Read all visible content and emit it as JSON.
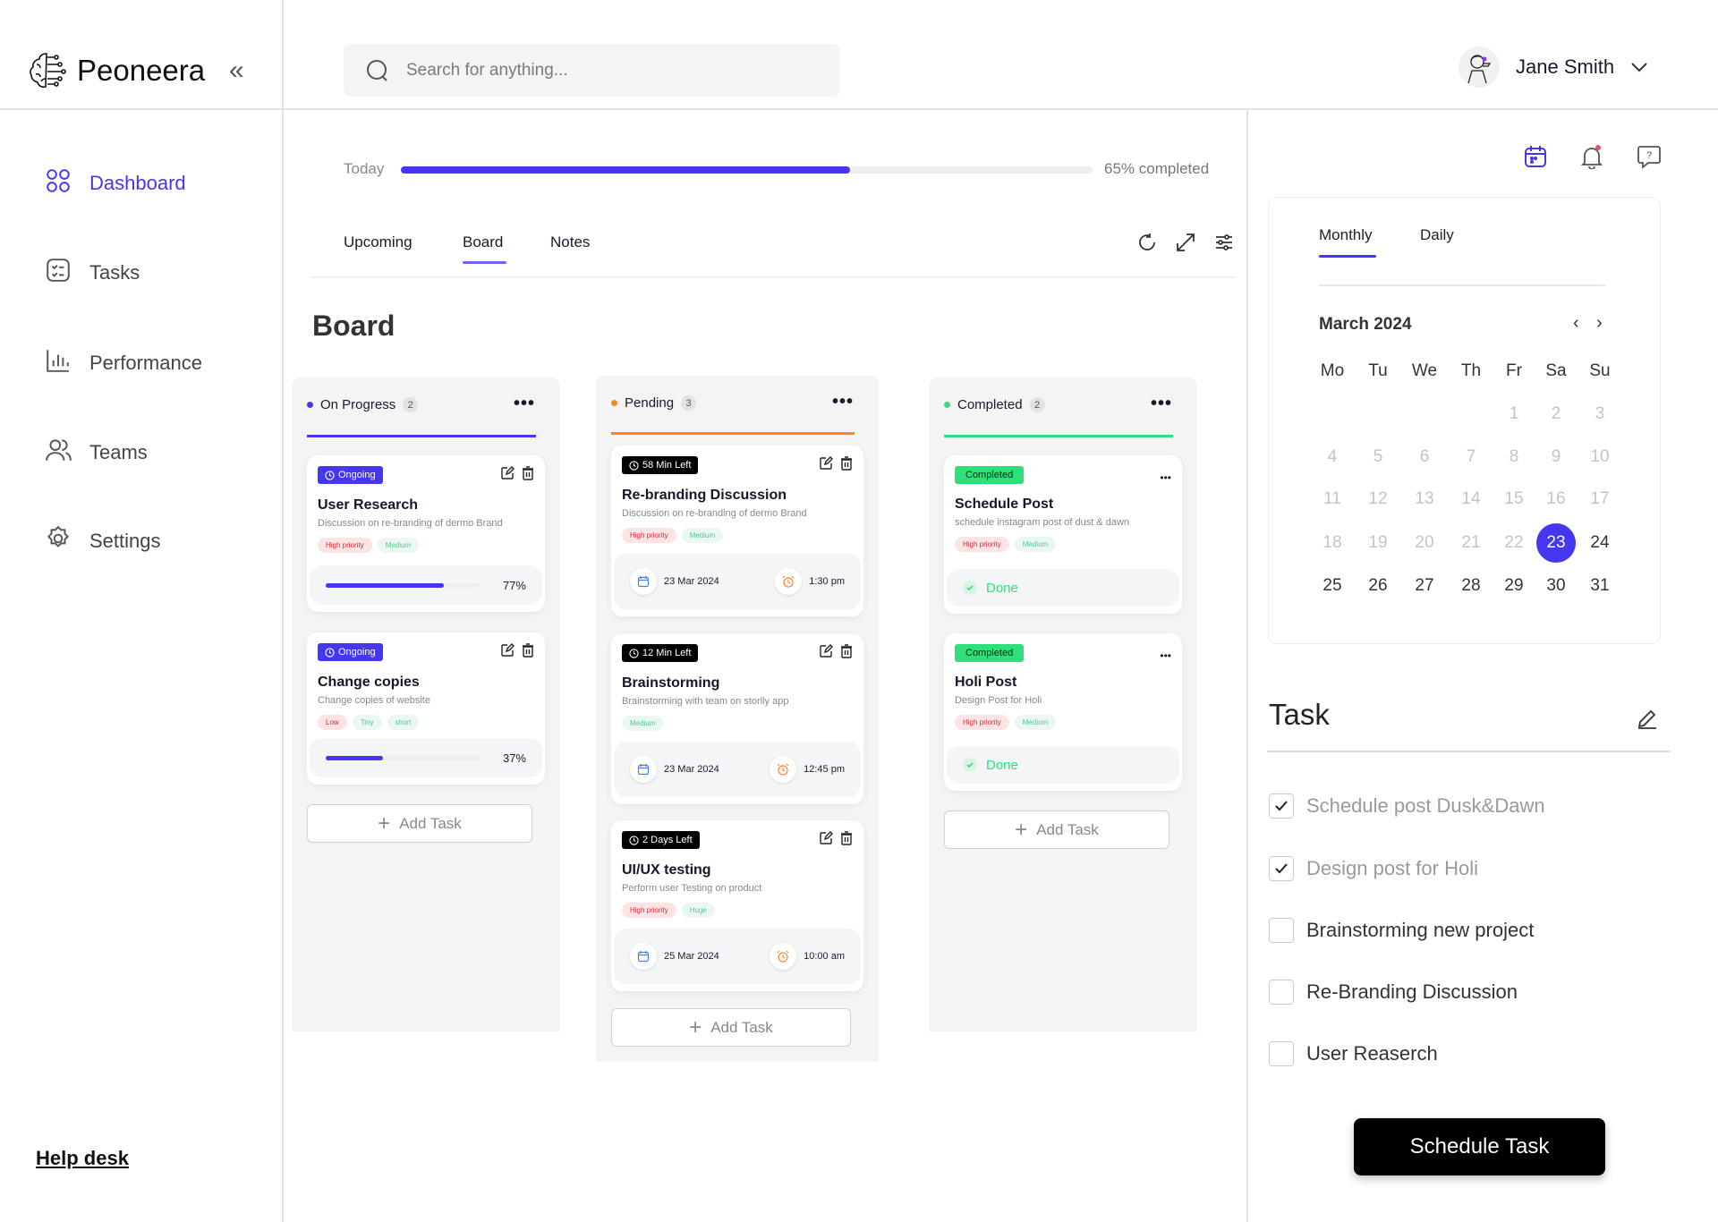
{
  "app": {
    "name": "Peoneera"
  },
  "search": {
    "placeholder": "Search for anything..."
  },
  "user": {
    "name": "Jane Smith"
  },
  "sidebar": {
    "items": [
      {
        "label": "Dashboard",
        "icon": "grid-icon",
        "active": true
      },
      {
        "label": "Tasks",
        "icon": "checklist-icon"
      },
      {
        "label": "Performance",
        "icon": "bar-chart-icon"
      },
      {
        "label": "Teams",
        "icon": "users-icon"
      },
      {
        "label": "Settings",
        "icon": "gear-icon"
      }
    ],
    "help": "Help desk"
  },
  "progress": {
    "label": "Today",
    "percent": 65,
    "text": "65% completed"
  },
  "tabs": [
    {
      "label": "Upcoming"
    },
    {
      "label": "Board",
      "active": true
    },
    {
      "label": "Notes"
    }
  ],
  "board": {
    "title": "Board",
    "add_label": "Add Task",
    "columns": [
      {
        "name": "On Progress",
        "count": "2",
        "color": "#4537ee",
        "cards": [
          {
            "badge": "Ongoing",
            "badge_color": "#4537ee",
            "title": "User Research",
            "desc": "Discussion on re-branding of dermo Brand",
            "tags": [
              {
                "t": "High priority",
                "c": "red"
              },
              {
                "t": "Medium",
                "c": "green"
              }
            ],
            "progress": 77,
            "progress_text": "77%"
          },
          {
            "badge": "Ongoing",
            "badge_color": "#4537ee",
            "title": "Change copies",
            "desc": "Change copies of website",
            "tags": [
              {
                "t": "Low",
                "c": "red"
              },
              {
                "t": "Tiny",
                "c": "green"
              },
              {
                "t": "short",
                "c": "green"
              }
            ],
            "progress": 37,
            "progress_text": "37%"
          }
        ]
      },
      {
        "name": "Pending",
        "count": "3",
        "color": "#f5881f",
        "cards": [
          {
            "badge": "58 Min Left",
            "badge_color": "#000000",
            "title": "Re-branding Discussion",
            "desc": "Discussion on re-branding of dermo Brand",
            "tags": [
              {
                "t": "High priority",
                "c": "red"
              },
              {
                "t": "Medium",
                "c": "green"
              }
            ],
            "date": "23 Mar 2024",
            "time": "1:30 pm"
          },
          {
            "badge": "12 Min Left",
            "badge_color": "#000000",
            "title": "Brainstorming",
            "desc": "Brainstorming with team on storlly app",
            "tags": [
              {
                "t": "Medium",
                "c": "green"
              }
            ],
            "date": "23 Mar 2024",
            "time": "12:45 pm"
          },
          {
            "badge": "2 Days Left",
            "badge_color": "#000000",
            "title": "UI/UX testing",
            "desc": "Perform user Testing on product",
            "tags": [
              {
                "t": "High priority",
                "c": "red"
              },
              {
                "t": "Huge",
                "c": "green"
              }
            ],
            "date": "25 Mar 2024",
            "time": "10:00 am"
          }
        ]
      },
      {
        "name": "Completed",
        "count": "2",
        "color": "#2fe07a",
        "cards": [
          {
            "badge": "Completed",
            "badge_color": "#2fe07a",
            "title": "Schedule Post",
            "desc": "schedule instagram post of dust & dawn",
            "tags": [
              {
                "t": "High priority",
                "c": "red"
              },
              {
                "t": "Medium",
                "c": "green"
              }
            ],
            "status": "Done"
          },
          {
            "badge": "Completed",
            "badge_color": "#2fe07a",
            "title": "Holi Post",
            "desc": "Design Post for Holi",
            "tags": [
              {
                "t": "High priority",
                "c": "red"
              },
              {
                "t": "Medium",
                "c": "green"
              }
            ],
            "status": "Done"
          }
        ]
      }
    ]
  },
  "calendar": {
    "tabs": [
      {
        "label": "Monthly",
        "active": true
      },
      {
        "label": "Daily"
      }
    ],
    "month_label": "March 2024",
    "year": 2024,
    "month": 3,
    "days_in_month": 31,
    "selected": 23,
    "weekdays": [
      "Mo",
      "Tu",
      "We",
      "Th",
      "Fr",
      "Sa",
      "Su"
    ]
  },
  "tasks": {
    "title": "Task",
    "items": [
      {
        "label": "Schedule post Dusk&Dawn",
        "checked": true
      },
      {
        "label": "Design post for Holi",
        "checked": true
      },
      {
        "label": "Brainstorming new project",
        "checked": false
      },
      {
        "label": "Re-Branding Discussion",
        "checked": false
      },
      {
        "label": "User Reaserch",
        "checked": false
      }
    ],
    "button": "Schedule Task"
  },
  "colors": {
    "accent": "#4537ee",
    "pending": "#f5881f",
    "completed": "#2fe07a"
  }
}
